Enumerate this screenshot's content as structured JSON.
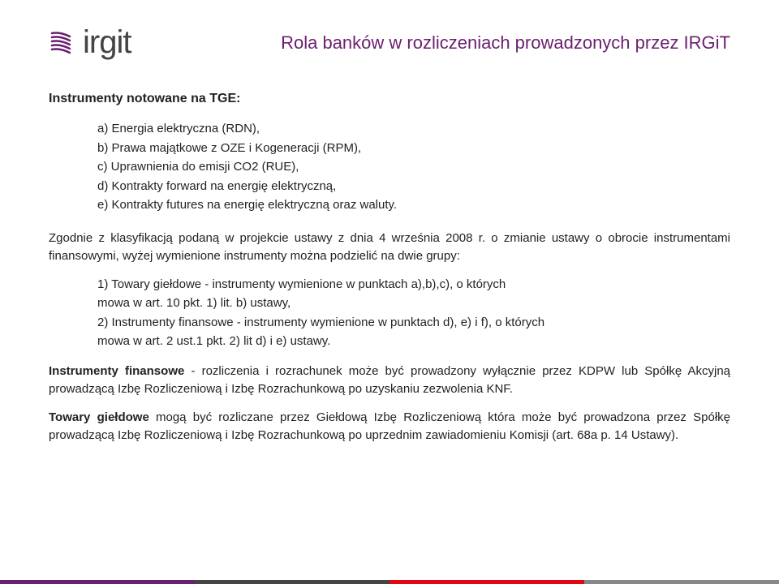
{
  "brand": {
    "name": "irgit",
    "logo_color": "#6b1f6e",
    "text_color": "#444444"
  },
  "title": {
    "text": "Rola banków w rozliczeniach prowadzonych przez IRGiT",
    "color": "#6b1f6e"
  },
  "heading": "Instrumenty notowane na TGE:",
  "items": {
    "a": "a) Energia elektryczna (RDN),",
    "b": "b) Prawa majątkowe z OZE i Kogeneracji (RPM),",
    "c": "c) Uprawnienia do emisji CO2 (RUE),",
    "d": "d) Kontrakty forward na energię elektryczną,",
    "e": "e) Kontrakty futures na energię elektryczną oraz waluty."
  },
  "para1": "Zgodnie z klasyfikacją podaną w projekcie ustawy z dnia 4 września 2008 r. o zmianie ustawy o obrocie instrumentami finansowymi, wyżej wymienione instrumenty można podzielić na dwie grupy:",
  "sub": {
    "s1a": "1) Towary giełdowe - instrumenty wymienione w punktach a),b),c), o których",
    "s1b": "mowa w art. 10 pkt. 1) lit. b) ustawy,",
    "s2a": "2) Instrumenty finansowe - instrumenty wymienione w punktach d), e) i f), o których",
    "s2b": "mowa w art. 2 ust.1 pkt. 2) lit d) i e) ustawy."
  },
  "para2": {
    "bold": "Instrumenty finansowe",
    "rest": " - rozliczenia i rozrachunek może być prowadzony wyłącznie przez KDPW lub Spółkę Akcyjną prowadzącą Izbę Rozliczeniową i Izbę Rozrachunkową po uzyskaniu zezwolenia KNF."
  },
  "para3": {
    "bold": "Towary giełdowe",
    "rest": " mogą być rozliczane przez Giełdową Izbę Rozliczeniową która może być prowadzona przez Spółkę prowadzącą Izbę Rozliczeniową i Izbę Rozrachunkową po uprzednim zawiadomieniu Komisji (art. 68a p. 14 Ustawy)."
  },
  "footer_colors": [
    "#6b1f6e",
    "#444444",
    "#e30613",
    "#888888"
  ],
  "footer_widths": [
    "25%",
    "25%",
    "25%",
    "25%"
  ]
}
